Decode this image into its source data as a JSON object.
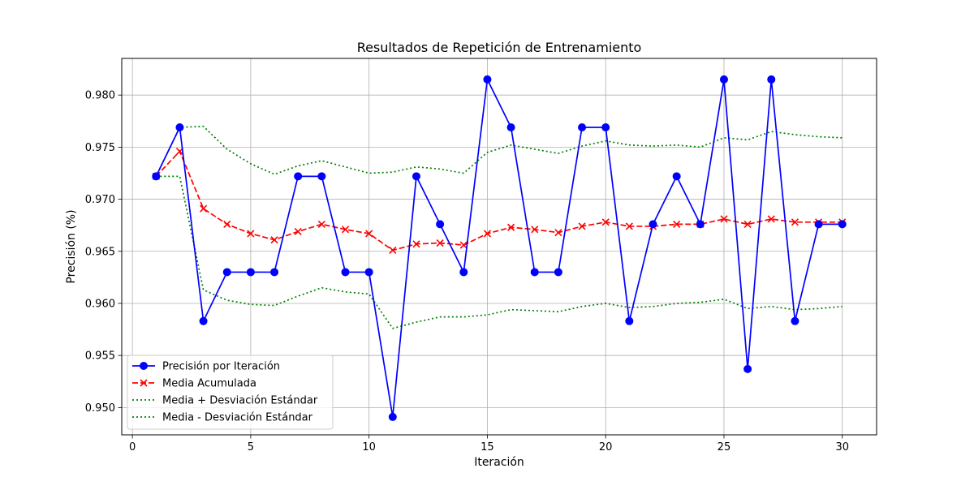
{
  "chart_data": {
    "type": "line",
    "title": "Resultados de Repetición de Entrenamiento",
    "xlabel": "Iteración",
    "ylabel": "Precisión (%)",
    "xlim": [
      -0.45,
      31.45
    ],
    "ylim": [
      0.94738,
      0.98352
    ],
    "xticks": [
      0,
      5,
      10,
      15,
      20,
      25,
      30
    ],
    "xtick_labels": [
      "0",
      "5",
      "10",
      "15",
      "20",
      "25",
      "30"
    ],
    "yticks": [
      0.95,
      0.955,
      0.96,
      0.965,
      0.97,
      0.975,
      0.98
    ],
    "ytick_labels": [
      "0.950",
      "0.955",
      "0.960",
      "0.965",
      "0.970",
      "0.975",
      "0.980"
    ],
    "grid": true,
    "legend_position": "lower-left",
    "x": [
      1,
      2,
      3,
      4,
      5,
      6,
      7,
      8,
      9,
      10,
      11,
      12,
      13,
      14,
      15,
      16,
      17,
      18,
      19,
      20,
      21,
      22,
      23,
      24,
      25,
      26,
      27,
      28,
      29,
      30
    ],
    "series": [
      {
        "name": "Precisión por Iteración",
        "color": "#0000ff",
        "style": "solid",
        "marker": "circle",
        "values": [
          0.9722,
          0.9769,
          0.9583,
          0.963,
          0.963,
          0.963,
          0.9722,
          0.9722,
          0.963,
          0.963,
          0.9491,
          0.9722,
          0.9676,
          0.963,
          0.9815,
          0.9769,
          0.963,
          0.963,
          0.9769,
          0.9769,
          0.9583,
          0.9676,
          0.9722,
          0.9676,
          0.9815,
          0.9537,
          0.9815,
          0.9583,
          0.9676,
          0.9676
        ]
      },
      {
        "name": "Media Acumulada",
        "color": "#ff0000",
        "style": "dashed",
        "marker": "x",
        "values": [
          0.9722,
          0.9746,
          0.9691,
          0.9676,
          0.9667,
          0.9661,
          0.9669,
          0.9676,
          0.9671,
          0.9667,
          0.9651,
          0.9657,
          0.9658,
          0.9656,
          0.9667,
          0.9673,
          0.9671,
          0.9668,
          0.9674,
          0.9678,
          0.9674,
          0.9674,
          0.9676,
          0.9676,
          0.9681,
          0.9676,
          0.9681,
          0.9678,
          0.9678,
          0.9678
        ]
      },
      {
        "name": "Media + Desviación Estándar",
        "color": "#008000",
        "style": "dotted",
        "marker": "none",
        "values": [
          0.9722,
          0.9769,
          0.977,
          0.9748,
          0.9734,
          0.9724,
          0.9732,
          0.9737,
          0.9731,
          0.9725,
          0.9726,
          0.9731,
          0.9729,
          0.9725,
          0.9745,
          0.9752,
          0.9748,
          0.9744,
          0.9751,
          0.9756,
          0.9752,
          0.9751,
          0.9752,
          0.975,
          0.9759,
          0.9757,
          0.9765,
          0.9762,
          0.976,
          0.9759
        ]
      },
      {
        "name": "Media - Desviación Estándar",
        "color": "#008000",
        "style": "dotted",
        "marker": "none",
        "values": [
          0.9722,
          0.9722,
          0.9613,
          0.9603,
          0.9599,
          0.9598,
          0.9607,
          0.9615,
          0.9611,
          0.9609,
          0.9576,
          0.9582,
          0.9587,
          0.9587,
          0.9589,
          0.9594,
          0.9593,
          0.9592,
          0.9597,
          0.96,
          0.9596,
          0.9597,
          0.96,
          0.9601,
          0.9604,
          0.9595,
          0.9597,
          0.9594,
          0.9595,
          0.9597
        ]
      }
    ]
  }
}
